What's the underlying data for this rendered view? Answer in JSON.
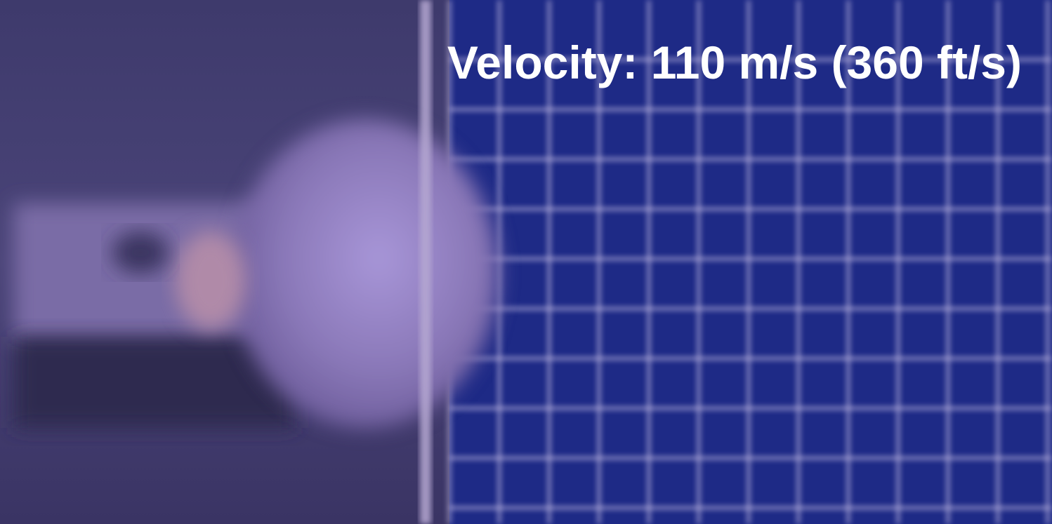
{
  "caption": "Velocity: 110 m/s (360 ft/s)"
}
